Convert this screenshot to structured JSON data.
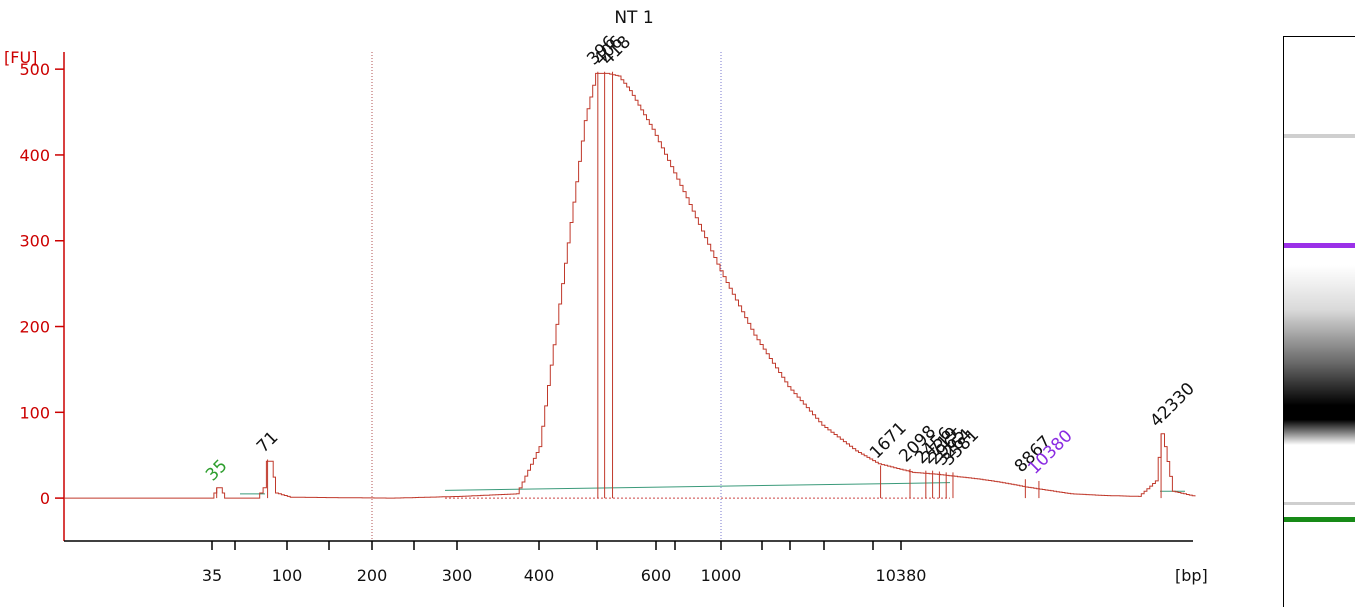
{
  "chart_data": {
    "type": "line",
    "title": "NT 1",
    "ylabel": "[FU]",
    "xlabel": "[bp]",
    "ylim": [
      -50,
      520
    ],
    "yticks": [
      0,
      100,
      200,
      300,
      400,
      500
    ],
    "xticks": [
      "35",
      "",
      "100",
      "",
      "200",
      "",
      "300",
      "400",
      "",
      "600",
      "",
      "1000",
      "",
      "",
      "",
      "",
      "10380"
    ],
    "series": [
      {
        "values": [
          [
            0.0,
            0
          ],
          [
            0.13,
            0
          ],
          [
            0.135,
            12
          ],
          [
            0.138,
            12
          ],
          [
            0.142,
            0
          ],
          [
            0.17,
            0
          ],
          [
            0.176,
            12
          ],
          [
            0.179,
            43
          ],
          [
            0.183,
            43
          ],
          [
            0.187,
            6
          ],
          [
            0.2,
            1
          ],
          [
            0.29,
            0
          ],
          [
            0.35,
            2
          ],
          [
            0.4,
            5
          ],
          [
            0.42,
            60
          ],
          [
            0.44,
            250
          ],
          [
            0.46,
            440
          ],
          [
            0.47,
            495
          ],
          [
            0.48,
            495
          ],
          [
            0.49,
            492
          ],
          [
            0.5,
            475
          ],
          [
            0.52,
            430
          ],
          [
            0.55,
            350
          ],
          [
            0.58,
            265
          ],
          [
            0.61,
            190
          ],
          [
            0.64,
            130
          ],
          [
            0.67,
            85
          ],
          [
            0.7,
            55
          ],
          [
            0.72,
            40
          ],
          [
            0.75,
            30
          ],
          [
            0.77,
            28
          ],
          [
            0.79,
            25
          ],
          [
            0.81,
            22
          ],
          [
            0.83,
            18
          ],
          [
            0.85,
            13
          ],
          [
            0.87,
            9
          ],
          [
            0.89,
            5
          ],
          [
            0.92,
            3
          ],
          [
            0.95,
            2
          ],
          [
            0.965,
            20
          ],
          [
            0.97,
            75
          ],
          [
            0.973,
            60
          ],
          [
            0.98,
            8
          ],
          [
            1.0,
            2
          ]
        ]
      }
    ],
    "peak_labels": [
      {
        "label": "35",
        "color": "#2e9e2e",
        "x": 0.135,
        "y": 12
      },
      {
        "label": "71",
        "color": "#111111",
        "x": 0.18,
        "y": 45
      },
      {
        "label": "396",
        "color": "#111111",
        "x": 0.472,
        "y": 497
      },
      {
        "label": "406",
        "color": "#111111",
        "x": 0.478,
        "y": 497
      },
      {
        "label": "418",
        "color": "#111111",
        "x": 0.485,
        "y": 497
      },
      {
        "label": "1671",
        "color": "#111111",
        "x": 0.722,
        "y": 38
      },
      {
        "label": "2098",
        "color": "#111111",
        "x": 0.748,
        "y": 34
      },
      {
        "label": "2456",
        "color": "#111111",
        "x": 0.762,
        "y": 32
      },
      {
        "label": "2719",
        "color": "#111111",
        "x": 0.768,
        "y": 32
      },
      {
        "label": "2965",
        "color": "#111111",
        "x": 0.774,
        "y": 31
      },
      {
        "label": "3264",
        "color": "#111111",
        "x": 0.78,
        "y": 30
      },
      {
        "label": "3581",
        "color": "#111111",
        "x": 0.786,
        "y": 30
      },
      {
        "label": "8867",
        "color": "#111111",
        "x": 0.85,
        "y": 22
      },
      {
        "label": "10380",
        "color": "#8a2be2",
        "x": 0.862,
        "y": 20
      },
      {
        "label": "42330",
        "color": "#111111",
        "x": 0.97,
        "y": 75
      }
    ],
    "grid": "dotted vertical markers"
  },
  "gel_lane": {
    "bands": [
      {
        "kind": "upper-marker",
        "color": "#cfcfcf",
        "position": 0.17
      },
      {
        "kind": "marker",
        "color": "#9b30e8",
        "position": 0.36
      },
      {
        "kind": "smear",
        "color": "#000000",
        "position": 0.61
      },
      {
        "kind": "lower-marker",
        "color": "#cfcfcf",
        "position": 0.815
      },
      {
        "kind": "lower-marker",
        "color": "#178a17",
        "position": 0.84
      }
    ]
  }
}
